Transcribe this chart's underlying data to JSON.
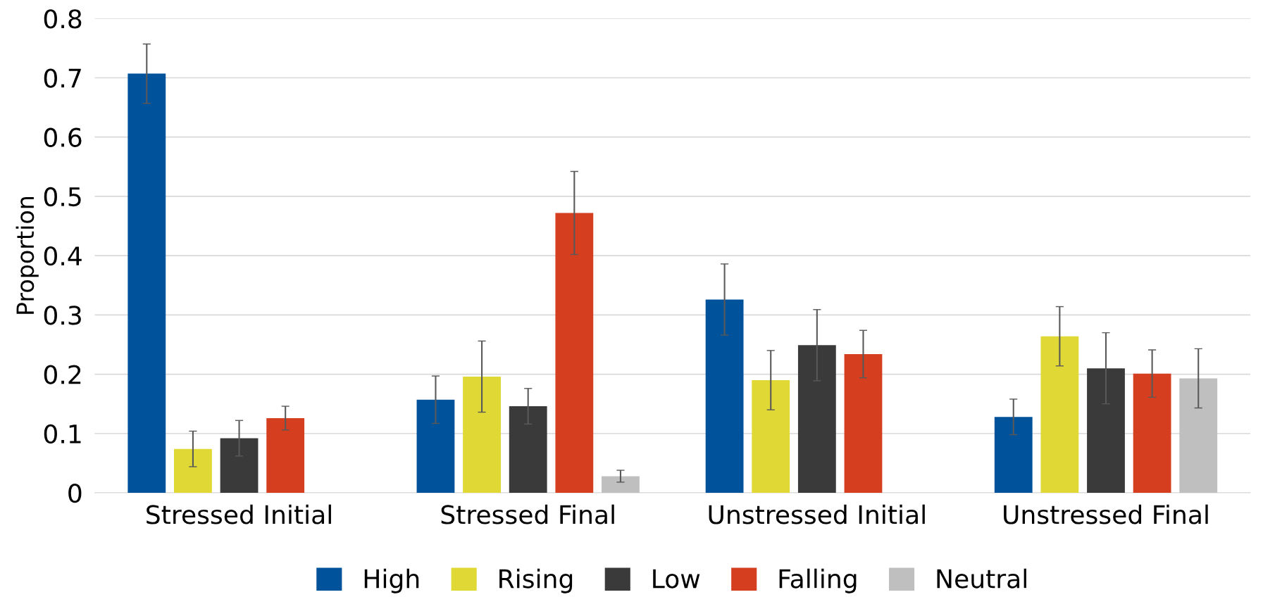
{
  "chart_data": {
    "type": "bar",
    "ylabel": "Proportion",
    "categories": [
      "Stressed Initial",
      "Stressed Final",
      "Unstressed Initial",
      "Unstressed Final"
    ],
    "series": [
      {
        "name": "High",
        "color": "#00529b",
        "values": [
          0.707,
          0.157,
          0.326,
          0.128
        ],
        "errors": [
          0.05,
          0.04,
          0.06,
          0.03
        ]
      },
      {
        "name": "Rising",
        "color": "#e0d835",
        "values": [
          0.074,
          0.196,
          0.19,
          0.264
        ],
        "errors": [
          0.03,
          0.06,
          0.05,
          0.05
        ]
      },
      {
        "name": "Low",
        "color": "#3a3a3a",
        "values": [
          0.092,
          0.146,
          0.249,
          0.21
        ],
        "errors": [
          0.03,
          0.03,
          0.06,
          0.06
        ]
      },
      {
        "name": "Falling",
        "color": "#d63e20",
        "values": [
          0.126,
          0.472,
          0.234,
          0.201
        ],
        "errors": [
          0.02,
          0.07,
          0.04,
          0.04
        ]
      },
      {
        "name": "Neutral",
        "color": "#bfbfbf",
        "values": [
          0,
          0.028,
          0,
          0.193
        ],
        "errors": [
          null,
          0.01,
          null,
          0.05
        ]
      }
    ],
    "ylim": [
      0,
      0.8
    ],
    "yticks": [
      0,
      0.1,
      0.2,
      0.3,
      0.4,
      0.5,
      0.6,
      0.7,
      0.8
    ],
    "grid": "y",
    "legend": "bottom"
  }
}
